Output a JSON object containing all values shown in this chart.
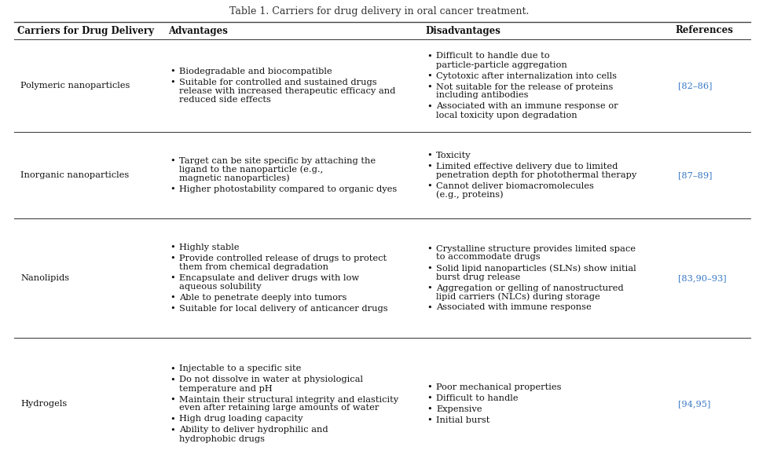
{
  "title": "Table 1. Carriers for drug delivery in oral cancer treatment.",
  "bg_color": "#ffffff",
  "header": [
    "Carriers for Drug Delivery",
    "Advantages",
    "Disadvantages",
    "References"
  ],
  "ref_color": "#3878c5",
  "header_fontsize": 8.5,
  "body_fontsize": 8.2,
  "rows": [
    {
      "carrier": "Polymeric nanoparticles",
      "advantages": [
        [
          "Biodegradable and biocompatible"
        ],
        [
          "Suitable for controlled and sustained drugs",
          "release with increased therapeutic efficacy and",
          "reduced side effects"
        ]
      ],
      "disadvantages": [
        [
          "Difficult to handle due to",
          "particle-particle aggregation"
        ],
        [
          "Cytotoxic after internalization into cells"
        ],
        [
          "Not suitable for the release of proteins",
          "including antibodies"
        ],
        [
          "Associated with an immune response or",
          "local toxicity upon degradation"
        ]
      ],
      "references": "[82–86]"
    },
    {
      "carrier": "Inorganic nanoparticles",
      "advantages": [
        [
          "Target can be site specific by attaching the",
          "ligand to the nanoparticle (e.g.,",
          "magnetic nanoparticles)"
        ],
        [
          "Higher photostability compared to organic dyes"
        ]
      ],
      "disadvantages": [
        [
          "Toxicity"
        ],
        [
          "Limited effective delivery due to limited",
          "penetration depth for photothermal therapy"
        ],
        [
          "Cannot deliver biomacromolecules",
          "(e.g., proteins)"
        ]
      ],
      "references": "[87–89]"
    },
    {
      "carrier": "Nanolipids",
      "advantages": [
        [
          "Highly stable"
        ],
        [
          "Provide controlled release of drugs to protect",
          "them from chemical degradation"
        ],
        [
          "Encapsulate and deliver drugs with low",
          "aqueous solubility"
        ],
        [
          "Able to penetrate deeply into tumors"
        ],
        [
          "Suitable for local delivery of anticancer drugs"
        ]
      ],
      "disadvantages": [
        [
          "Crystalline structure provides limited space",
          "to accommodate drugs"
        ],
        [
          "Solid lipid nanoparticles (SLNs) show initial",
          "burst drug release"
        ],
        [
          "Aggregation or gelling of nanostructured",
          "lipid carriers (NLCs) during storage"
        ],
        [
          "Associated with immune response"
        ]
      ],
      "references": "[83,90–93]"
    },
    {
      "carrier": "Hydrogels",
      "advantages": [
        [
          "Injectable to a specific site"
        ],
        [
          "Do not dissolve in water at physiological",
          "temperature and pH"
        ],
        [
          "Maintain their structural integrity and elasticity",
          "even after retaining large amounts of water"
        ],
        [
          "High drug loading capacity"
        ],
        [
          "Ability to deliver hydrophilic and",
          "hydrophobic drugs"
        ]
      ],
      "disadvantages": [
        [
          "Poor mechanical properties"
        ],
        [
          "Difficult to handle"
        ],
        [
          "Expensive"
        ],
        [
          "Initial burst"
        ]
      ],
      "references": "[94,95]"
    }
  ]
}
